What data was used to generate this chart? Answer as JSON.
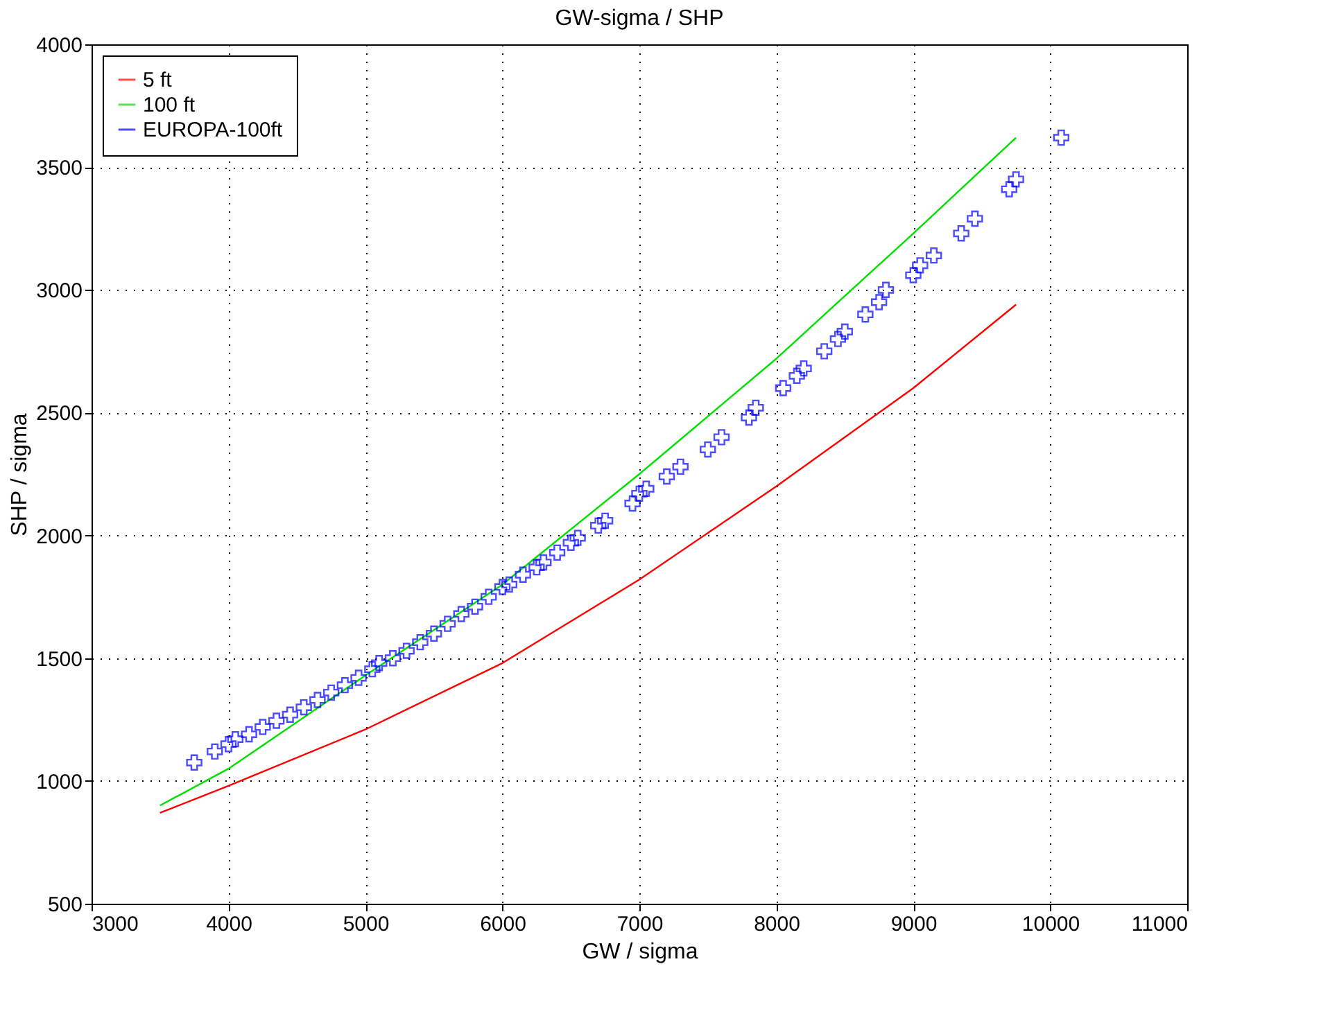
{
  "chart_data": {
    "type": "line",
    "title": "GW-sigma / SHP",
    "xlabel": "GW / sigma",
    "ylabel": "SHP / sigma",
    "xlim": [
      3000,
      11000
    ],
    "xticks": [
      3000,
      4000,
      5000,
      6000,
      7000,
      8000,
      9000,
      10000,
      11000
    ],
    "ylim": [
      500,
      4000
    ],
    "yticks": [
      500,
      1000,
      1500,
      2000,
      2500,
      3000,
      3500,
      4000
    ],
    "grid": true,
    "legend": "top left",
    "series": [
      {
        "name": "5 ft",
        "color": "#ff0000",
        "marker": "none",
        "x": [
          3500,
          4000,
          5000,
          6000,
          7000,
          8000,
          9000,
          9750
        ],
        "values": [
          870,
          980,
          1210,
          1480,
          1820,
          2200,
          2600,
          2940
        ]
      },
      {
        "name": "100 ft",
        "color": "#00e000",
        "marker": "none",
        "x": [
          3500,
          4000,
          5000,
          6000,
          7000,
          8000,
          9000,
          9750
        ],
        "values": [
          900,
          1050,
          1430,
          1800,
          2250,
          2720,
          3230,
          3620
        ]
      },
      {
        "name": "EUROPA-100ft",
        "color": "#0000ff",
        "type": "scatter",
        "marker": "cross",
        "x": [
          3750,
          3900,
          4000,
          4050,
          4150,
          4250,
          4350,
          4450,
          4550,
          4650,
          4750,
          4850,
          4950,
          5050,
          5100,
          5200,
          5300,
          5400,
          5500,
          5600,
          5700,
          5800,
          5900,
          6000,
          6050,
          6150,
          6250,
          6300,
          6400,
          6500,
          6550,
          6700,
          6750,
          6950,
          7000,
          7050,
          7200,
          7300,
          7500,
          7600,
          7800,
          7850,
          8050,
          8150,
          8200,
          8350,
          8450,
          8500,
          8650,
          8750,
          8800,
          9000,
          9050,
          9150,
          9350,
          9450,
          9700,
          9750,
          10080
        ],
        "values": [
          1075,
          1120,
          1150,
          1170,
          1190,
          1220,
          1245,
          1270,
          1300,
          1330,
          1360,
          1390,
          1420,
          1455,
          1480,
          1500,
          1530,
          1565,
          1600,
          1640,
          1680,
          1710,
          1750,
          1790,
          1800,
          1840,
          1870,
          1890,
          1930,
          1970,
          1990,
          2040,
          2060,
          2130,
          2170,
          2190,
          2240,
          2280,
          2350,
          2400,
          2480,
          2520,
          2600,
          2650,
          2680,
          2750,
          2800,
          2830,
          2900,
          2950,
          3000,
          3060,
          3100,
          3140,
          3230,
          3290,
          3410,
          3450,
          3620
        ]
      }
    ]
  }
}
